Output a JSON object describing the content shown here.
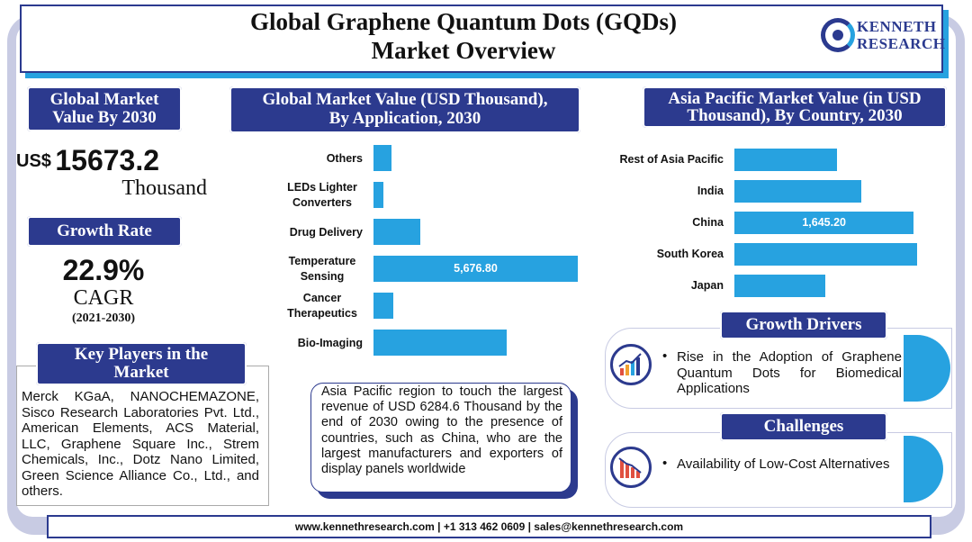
{
  "header": {
    "title_line1": "Global Graphene Quantum Dots (GQDs)",
    "title_line2": "Market Overview",
    "logo_line1": "KENNETH",
    "logo_line2": "RESEARCH"
  },
  "left": {
    "market_value_heading_line1": "Global Market",
    "market_value_heading_line2": "Value By 2030",
    "currency": "US$",
    "value": "15673.2",
    "unit": "Thousand",
    "growth_heading": "Growth Rate",
    "growth_value": "22.9%",
    "growth_label": "CAGR",
    "growth_period": "(2021-2030)",
    "players_heading_line1": "Key Players in the",
    "players_heading_line2": "Market",
    "players_text": "Merck KGaA, NANOCHEMAZONE, Sisco Research Laboratories Pvt. Ltd., American Elements, ACS Material, LLC, Graphene Square Inc., Strem Chemicals, Inc., Dotz Nano Limited, Green Science Alliance Co., Ltd., and others."
  },
  "middle": {
    "heading_line1": "Global Market Value (USD Thousand),",
    "heading_line2": "By Application, 2030",
    "note": "Asia Pacific region to touch the largest revenue of USD 6284.6 Thousand by the end of 2030 owing to the presence of countries, such as China, who are the largest manufacturers and exporters of display panels worldwide"
  },
  "right": {
    "heading_line1": "Asia Pacific Market Value (in USD",
    "heading_line2": "Thousand), By Country, 2030",
    "drivers_heading": "Growth Drivers",
    "drivers_text": "Rise in the Adoption of Graphene Quantum Dots for Biomedical Applications",
    "challenges_heading": "Challenges",
    "challenges_text": "Availability of Low-Cost Alternatives",
    "bullet": "•"
  },
  "footer": {
    "text": "www.kennethresearch.com | +1 313 462 0609 | sales@kennethresearch.com"
  },
  "colors": {
    "navy": "#2c3a8e",
    "bar": "#27a2e0",
    "frame": "#c8cbe3"
  },
  "chart_data": [
    {
      "type": "bar",
      "orientation": "horizontal",
      "categories": [
        "Others",
        "LEDs Lighter Converters",
        "Drug Delivery",
        "Temperature Sensing",
        "Cancer Therapeutics",
        "Bio-Imaging"
      ],
      "values": [
        490,
        280,
        1310,
        5676.8,
        540,
        3700
      ],
      "data_labels": [
        "",
        "",
        "",
        "5,676.80",
        "",
        ""
      ],
      "title": "Global Market Value (USD Thousand), By Application, 2030",
      "xlabel": "",
      "ylabel": "",
      "xlim": [
        0,
        5676.8
      ],
      "grid": false
    },
    {
      "type": "bar",
      "orientation": "horizontal",
      "categories": [
        "Rest of Asia Pacific",
        "India",
        "China",
        "South Korea",
        "Japan"
      ],
      "values": [
        940,
        1160,
        1645.2,
        1675,
        830
      ],
      "data_labels": [
        "",
        "",
        "1,645.20",
        "",
        ""
      ],
      "title": "Asia Pacific Market Value (in USD Thousand), By Country, 2030",
      "xlabel": "",
      "ylabel": "",
      "xlim": [
        0,
        1675
      ],
      "grid": false
    }
  ]
}
